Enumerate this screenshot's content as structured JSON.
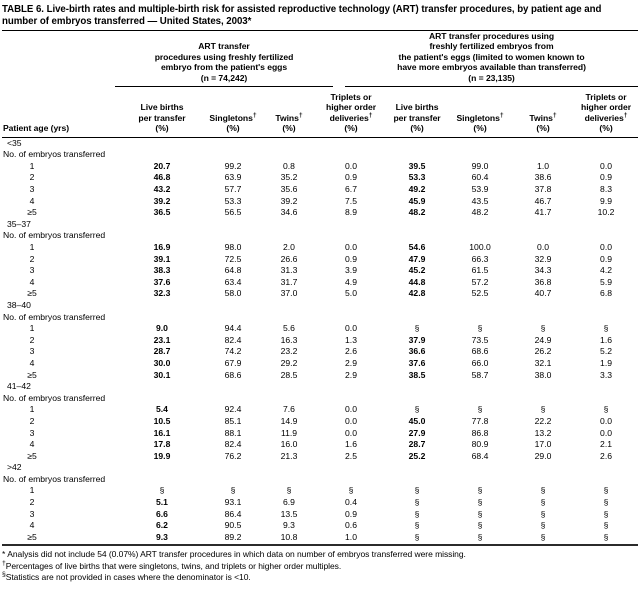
{
  "title": "TABLE 6. Live-birth rates and multiple-birth risk for assisted reproductive technology (ART) transfer procedures, by patient age and number of embryos transferred — United States, 2003*",
  "table": {
    "row_header_label": "Patient age (yrs)",
    "groups": [
      {
        "name": "fresh-embryo-group",
        "header_lines": [
          "ART transfer",
          "procedures using freshly fertilized",
          "embryo from the patient's eggs",
          "(n = 74,242)"
        ]
      },
      {
        "name": "fresh-embryo-extra-available-group",
        "header_lines": [
          "ART transfer procedures using",
          "freshly fertilized embryos from",
          "the patient's eggs (limited to women known to",
          "have more embryos available than transferred)",
          "(n = 23,135)"
        ]
      }
    ],
    "column_headers": [
      {
        "lines": [
          "Live births",
          "per transfer",
          "(%)"
        ]
      },
      {
        "lines": [
          "Singletons†",
          "(%)"
        ]
      },
      {
        "lines": [
          "Twins†",
          "(%)"
        ]
      },
      {
        "lines": [
          "Triplets or",
          "higher order",
          "deliveries†",
          "(%)"
        ]
      }
    ],
    "embryos_label": "No. of embryos transferred",
    "sections": [
      {
        "age": "<35",
        "rows": [
          {
            "n": "1",
            "values": [
              "20.7",
              "99.2",
              "0.8",
              "0.0",
              "39.5",
              "99.0",
              "1.0",
              "0.0"
            ]
          },
          {
            "n": "2",
            "values": [
              "46.8",
              "63.9",
              "35.2",
              "0.9",
              "53.3",
              "60.4",
              "38.6",
              "0.9"
            ]
          },
          {
            "n": "3",
            "values": [
              "43.2",
              "57.7",
              "35.6",
              "6.7",
              "49.2",
              "53.9",
              "37.8",
              "8.3"
            ]
          },
          {
            "n": "4",
            "values": [
              "39.2",
              "53.3",
              "39.2",
              "7.5",
              "45.9",
              "43.5",
              "46.7",
              "9.9"
            ]
          },
          {
            "n": "≥5",
            "values": [
              "36.5",
              "56.5",
              "34.6",
              "8.9",
              "48.2",
              "48.2",
              "41.7",
              "10.2"
            ]
          }
        ]
      },
      {
        "age": "35–37",
        "rows": [
          {
            "n": "1",
            "values": [
              "16.9",
              "98.0",
              "2.0",
              "0.0",
              "54.6",
              "100.0",
              "0.0",
              "0.0"
            ]
          },
          {
            "n": "2",
            "values": [
              "39.1",
              "72.5",
              "26.6",
              "0.9",
              "47.9",
              "66.3",
              "32.9",
              "0.9"
            ]
          },
          {
            "n": "3",
            "values": [
              "38.3",
              "64.8",
              "31.3",
              "3.9",
              "45.2",
              "61.5",
              "34.3",
              "4.2"
            ]
          },
          {
            "n": "4",
            "values": [
              "37.6",
              "63.4",
              "31.7",
              "4.9",
              "44.8",
              "57.2",
              "36.8",
              "5.9"
            ]
          },
          {
            "n": "≥5",
            "values": [
              "32.3",
              "58.0",
              "37.0",
              "5.0",
              "42.8",
              "52.5",
              "40.7",
              "6.8"
            ]
          }
        ]
      },
      {
        "age": "38–40",
        "rows": [
          {
            "n": "1",
            "values": [
              "9.0",
              "94.4",
              "5.6",
              "0.0",
              "§",
              "§",
              "§",
              "§"
            ]
          },
          {
            "n": "2",
            "values": [
              "23.1",
              "82.4",
              "16.3",
              "1.3",
              "37.9",
              "73.5",
              "24.9",
              "1.6"
            ]
          },
          {
            "n": "3",
            "values": [
              "28.7",
              "74.2",
              "23.2",
              "2.6",
              "36.6",
              "68.6",
              "26.2",
              "5.2"
            ]
          },
          {
            "n": "4",
            "values": [
              "30.0",
              "67.9",
              "29.2",
              "2.9",
              "37.6",
              "66.0",
              "32.1",
              "1.9"
            ]
          },
          {
            "n": "≥5",
            "values": [
              "30.1",
              "68.6",
              "28.5",
              "2.9",
              "38.5",
              "58.7",
              "38.0",
              "3.3"
            ]
          }
        ]
      },
      {
        "age": "41–42",
        "rows": [
          {
            "n": "1",
            "values": [
              "5.4",
              "92.4",
              "7.6",
              "0.0",
              "§",
              "§",
              "§",
              "§"
            ]
          },
          {
            "n": "2",
            "values": [
              "10.5",
              "85.1",
              "14.9",
              "0.0",
              "45.0",
              "77.8",
              "22.2",
              "0.0"
            ]
          },
          {
            "n": "3",
            "values": [
              "16.1",
              "88.1",
              "11.9",
              "0.0",
              "27.9",
              "86.8",
              "13.2",
              "0.0"
            ]
          },
          {
            "n": "4",
            "values": [
              "17.8",
              "82.4",
              "16.0",
              "1.6",
              "28.7",
              "80.9",
              "17.0",
              "2.1"
            ]
          },
          {
            "n": "≥5",
            "values": [
              "19.9",
              "76.2",
              "21.3",
              "2.5",
              "25.2",
              "68.4",
              "29.0",
              "2.6"
            ]
          }
        ]
      },
      {
        "age": ">42",
        "rows": [
          {
            "n": "1",
            "values": [
              "§",
              "§",
              "§",
              "§",
              "§",
              "§",
              "§",
              "§"
            ]
          },
          {
            "n": "2",
            "values": [
              "5.1",
              "93.1",
              "6.9",
              "0.4",
              "§",
              "§",
              "§",
              "§"
            ]
          },
          {
            "n": "3",
            "values": [
              "6.6",
              "86.4",
              "13.5",
              "0.9",
              "§",
              "§",
              "§",
              "§"
            ]
          },
          {
            "n": "4",
            "values": [
              "6.2",
              "90.5",
              "9.3",
              "0.6",
              "§",
              "§",
              "§",
              "§"
            ]
          },
          {
            "n": "≥5",
            "values": [
              "9.3",
              "89.2",
              "10.8",
              "1.0",
              "§",
              "§",
              "§",
              "§"
            ]
          }
        ]
      }
    ]
  },
  "footnotes": [
    {
      "marker": "*",
      "text": "Analysis did not include 54 (0.07%) ART transfer procedures in which data on number of embryos transferred were missing."
    },
    {
      "marker": "†",
      "text": "Percentages of live births that were singletons, twins, and triplets or higher order multiples."
    },
    {
      "marker": "§",
      "text": "Statistics are not provided in cases where the denominator is <10."
    }
  ]
}
